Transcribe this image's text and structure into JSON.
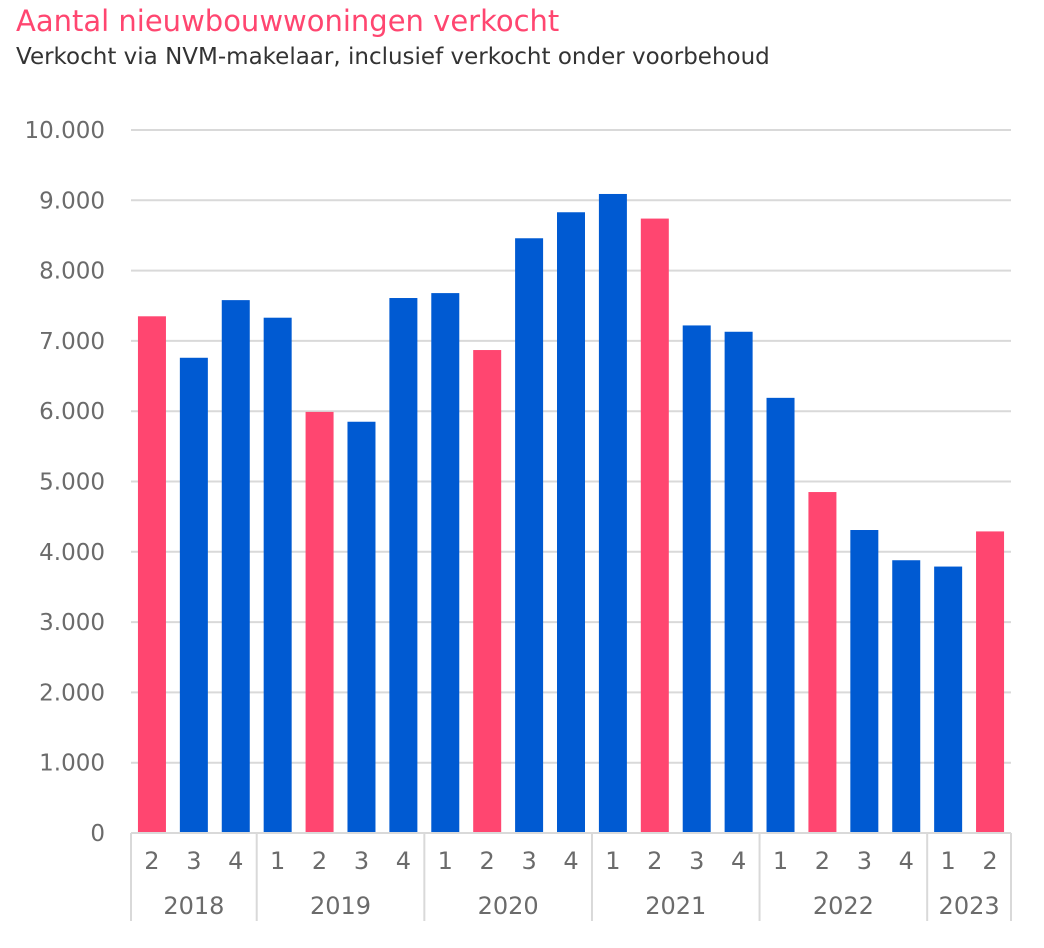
{
  "title": "Aantal nieuwbouwwoningen verkocht",
  "subtitle": "Verkocht via NVM-makelaar, inclusief verkocht onder voorbehoud",
  "colors": {
    "highlight": "#ff4670",
    "default": "#005ad2",
    "grid": "#d9d9d9",
    "title": "#ff4670"
  },
  "chart_data": {
    "type": "bar",
    "title": "Aantal nieuwbouwwoningen verkocht",
    "subtitle": "Verkocht via NVM-makelaar, inclusief verkocht onder voorbehoud",
    "xlabel": "",
    "ylabel": "",
    "ylim": [
      0,
      10000
    ],
    "yticks": [
      0,
      1000,
      2000,
      3000,
      4000,
      5000,
      6000,
      7000,
      8000,
      9000,
      10000
    ],
    "ytick_labels": [
      "0",
      "1.000",
      "2.000",
      "3.000",
      "4.000",
      "5.000",
      "6.000",
      "7.000",
      "8.000",
      "9.000",
      "10.000"
    ],
    "grid": true,
    "legend": "none",
    "groups": [
      {
        "label": "2018",
        "quarters": [
          "2",
          "3",
          "4"
        ]
      },
      {
        "label": "2019",
        "quarters": [
          "1",
          "2",
          "3",
          "4"
        ]
      },
      {
        "label": "2020",
        "quarters": [
          "1",
          "2",
          "3",
          "4"
        ]
      },
      {
        "label": "2021",
        "quarters": [
          "1",
          "2",
          "3",
          "4"
        ]
      },
      {
        "label": "2022",
        "quarters": [
          "1",
          "2",
          "3",
          "4"
        ]
      },
      {
        "label": "2023",
        "quarters": [
          "1",
          "2"
        ]
      }
    ],
    "categories": [
      "2018 Q2",
      "2018 Q3",
      "2018 Q4",
      "2019 Q1",
      "2019 Q2",
      "2019 Q3",
      "2019 Q4",
      "2020 Q1",
      "2020 Q2",
      "2020 Q3",
      "2020 Q4",
      "2021 Q1",
      "2021 Q2",
      "2021 Q3",
      "2021 Q4",
      "2022 Q1",
      "2022 Q2",
      "2022 Q3",
      "2022 Q4",
      "2023 Q1",
      "2023 Q2"
    ],
    "values": [
      7350,
      6760,
      7580,
      7330,
      5990,
      5850,
      7610,
      7680,
      6870,
      8460,
      8830,
      9090,
      8740,
      7220,
      7130,
      6190,
      4850,
      4310,
      3880,
      3790,
      4290
    ],
    "highlighted": [
      true,
      false,
      false,
      false,
      true,
      false,
      false,
      false,
      true,
      false,
      false,
      false,
      true,
      false,
      false,
      false,
      true,
      false,
      false,
      false,
      true
    ]
  }
}
